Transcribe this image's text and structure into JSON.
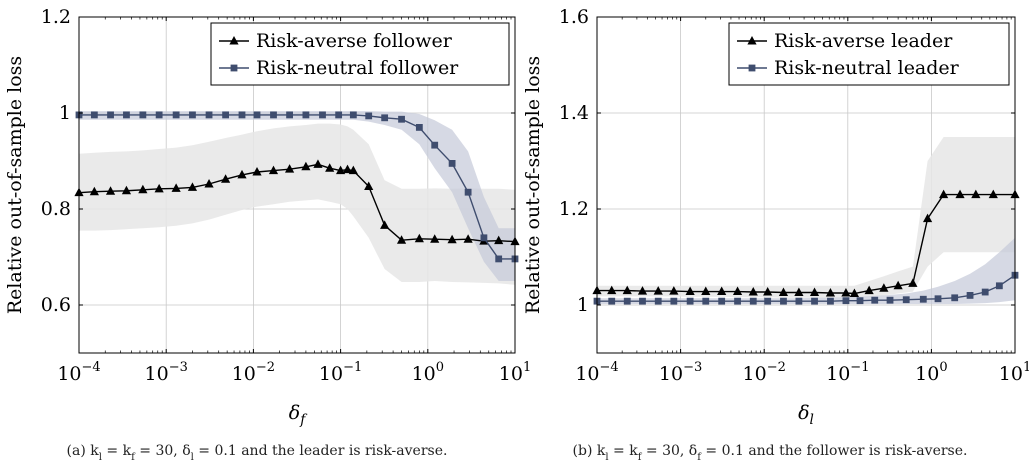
{
  "chart_data": [
    {
      "type": "line",
      "xscale": "log",
      "xlim": [
        0.0001,
        10
      ],
      "ylim": [
        0.5,
        1.2
      ],
      "xlabel": "δ_f",
      "ylabel": "Relative out-of-sample loss",
      "xticks": [
        "10^-4",
        "10^-3",
        "10^-2",
        "10^-1",
        "10^0",
        "10^1"
      ],
      "yticks": [
        "0.6",
        "0.8",
        "1",
        "1.2"
      ],
      "grid": true,
      "legend_position": "top-right",
      "caption": "(a) k_l = k_f = 30, δ_l = 0.1 and the leader is risk-averse.",
      "series": [
        {
          "name": "Risk-averse follower",
          "marker": "triangle",
          "color": "#000000",
          "band_color": "#e6e6e6",
          "x": [
            0.0001,
            0.00015,
            0.00023,
            0.00035,
            0.00054,
            0.00083,
            0.0013,
            0.002,
            0.0031,
            0.0048,
            0.0074,
            0.011,
            0.017,
            0.026,
            0.04,
            0.055,
            0.075,
            0.1,
            0.12,
            0.14,
            0.21,
            0.32,
            0.5,
            0.8,
            1.2,
            1.9,
            2.9,
            4.4,
            6.5,
            10
          ],
          "values": [
            0.834,
            0.836,
            0.837,
            0.838,
            0.84,
            0.842,
            0.843,
            0.845,
            0.852,
            0.862,
            0.871,
            0.877,
            0.88,
            0.883,
            0.888,
            0.893,
            0.885,
            0.88,
            0.882,
            0.88,
            0.847,
            0.766,
            0.735,
            0.738,
            0.737,
            0.736,
            0.737,
            0.733,
            0.734,
            0.732
          ],
          "band_low": [
            0.755,
            0.755,
            0.756,
            0.758,
            0.76,
            0.762,
            0.765,
            0.77,
            0.778,
            0.788,
            0.798,
            0.805,
            0.81,
            0.815,
            0.818,
            0.82,
            0.815,
            0.81,
            0.8,
            0.785,
            0.74,
            0.675,
            0.648,
            0.648,
            0.65,
            0.648,
            0.647,
            0.646,
            0.645,
            0.642
          ],
          "band_high": [
            0.915,
            0.917,
            0.919,
            0.92,
            0.922,
            0.925,
            0.928,
            0.933,
            0.94,
            0.948,
            0.955,
            0.962,
            0.968,
            0.972,
            0.975,
            0.978,
            0.978,
            0.976,
            0.972,
            0.965,
            0.935,
            0.86,
            0.842,
            0.842,
            0.843,
            0.842,
            0.843,
            0.842,
            0.842,
            0.84
          ]
        },
        {
          "name": "Risk-neutral follower",
          "marker": "square",
          "color": "#3f4d6e",
          "band_color": "#c5c9d8",
          "x": [
            0.0001,
            0.00015,
            0.00023,
            0.00035,
            0.00054,
            0.00083,
            0.0013,
            0.002,
            0.0031,
            0.0048,
            0.0074,
            0.011,
            0.017,
            0.026,
            0.04,
            0.062,
            0.095,
            0.14,
            0.21,
            0.32,
            0.5,
            0.8,
            1.2,
            1.9,
            2.9,
            4.4,
            6.5,
            10
          ],
          "values": [
            0.996,
            0.996,
            0.996,
            0.996,
            0.996,
            0.996,
            0.996,
            0.996,
            0.996,
            0.996,
            0.996,
            0.996,
            0.996,
            0.996,
            0.996,
            0.996,
            0.996,
            0.996,
            0.994,
            0.99,
            0.987,
            0.97,
            0.933,
            0.895,
            0.835,
            0.74,
            0.696,
            0.696
          ],
          "band_low": [
            0.986,
            0.986,
            0.986,
            0.986,
            0.986,
            0.986,
            0.986,
            0.986,
            0.986,
            0.986,
            0.986,
            0.986,
            0.986,
            0.986,
            0.986,
            0.986,
            0.986,
            0.986,
            0.982,
            0.975,
            0.965,
            0.935,
            0.885,
            0.835,
            0.76,
            0.69,
            0.65,
            0.65
          ],
          "band_high": [
            1.004,
            1.004,
            1.004,
            1.004,
            1.004,
            1.004,
            1.004,
            1.004,
            1.004,
            1.004,
            1.004,
            1.004,
            1.004,
            1.004,
            1.004,
            1.004,
            1.004,
            1.004,
            1.004,
            1.003,
            1.003,
            0.998,
            0.985,
            0.965,
            0.92,
            0.825,
            0.76,
            0.76
          ]
        }
      ]
    },
    {
      "type": "line",
      "xscale": "log",
      "xlim": [
        0.0001,
        10
      ],
      "ylim": [
        0.9,
        1.6
      ],
      "xlabel": "δ_l",
      "ylabel": "Relative out-of-sample loss",
      "xticks": [
        "10^-4",
        "10^-3",
        "10^-2",
        "10^-1",
        "10^0",
        "10^1"
      ],
      "yticks": [
        "1",
        "1.2",
        "1.4",
        "1.6"
      ],
      "grid": true,
      "legend_position": "top-right",
      "caption": "(b) k_l = k_f = 30, δ_f = 0.1 and the follower is risk-averse.",
      "series": [
        {
          "name": "Risk-averse leader",
          "marker": "triangle",
          "color": "#000000",
          "band_color": "#e6e6e6",
          "x": [
            0.0001,
            0.00015,
            0.00023,
            0.00035,
            0.00054,
            0.00083,
            0.0013,
            0.002,
            0.0031,
            0.0048,
            0.0074,
            0.011,
            0.017,
            0.026,
            0.04,
            0.062,
            0.095,
            0.12,
            0.18,
            0.27,
            0.4,
            0.6,
            0.9,
            1.4,
            2.2,
            3.4,
            5.5,
            10
          ],
          "values": [
            1.03,
            1.03,
            1.03,
            1.029,
            1.029,
            1.029,
            1.028,
            1.028,
            1.028,
            1.028,
            1.027,
            1.027,
            1.026,
            1.026,
            1.026,
            1.025,
            1.025,
            1.024,
            1.03,
            1.035,
            1.04,
            1.045,
            1.18,
            1.23,
            1.23,
            1.23,
            1.23,
            1.23
          ],
          "band_low": [
            1.018,
            1.018,
            1.018,
            1.018,
            1.018,
            1.018,
            1.017,
            1.017,
            1.017,
            1.016,
            1.016,
            1.016,
            1.015,
            1.015,
            1.015,
            1.014,
            1.014,
            1.014,
            1.016,
            1.02,
            1.024,
            1.028,
            1.08,
            1.11,
            1.11,
            1.11,
            1.11,
            1.11
          ],
          "band_high": [
            1.04,
            1.04,
            1.04,
            1.04,
            1.04,
            1.04,
            1.04,
            1.04,
            1.04,
            1.04,
            1.04,
            1.04,
            1.04,
            1.04,
            1.04,
            1.04,
            1.04,
            1.04,
            1.05,
            1.06,
            1.07,
            1.08,
            1.3,
            1.35,
            1.35,
            1.35,
            1.35,
            1.35
          ]
        },
        {
          "name": "Risk-neutral leader",
          "marker": "square",
          "color": "#3f4d6e",
          "band_color": "#c5c9d8",
          "x": [
            0.0001,
            0.00015,
            0.00023,
            0.00035,
            0.00054,
            0.00083,
            0.0013,
            0.002,
            0.0031,
            0.0048,
            0.0074,
            0.011,
            0.017,
            0.026,
            0.04,
            0.062,
            0.095,
            0.14,
            0.21,
            0.32,
            0.5,
            0.8,
            1.2,
            1.9,
            2.9,
            4.4,
            6.5,
            10
          ],
          "values": [
            1.008,
            1.008,
            1.008,
            1.008,
            1.008,
            1.008,
            1.008,
            1.008,
            1.008,
            1.008,
            1.008,
            1.008,
            1.008,
            1.008,
            1.008,
            1.008,
            1.009,
            1.009,
            1.01,
            1.01,
            1.011,
            1.012,
            1.013,
            1.015,
            1.02,
            1.027,
            1.04,
            1.062
          ],
          "band_low": [
            1.002,
            1.002,
            1.002,
            1.002,
            1.002,
            1.002,
            1.002,
            1.002,
            1.002,
            1.002,
            1.002,
            1.002,
            1.002,
            1.002,
            1.002,
            1.002,
            1.002,
            1.002,
            1.002,
            1.002,
            1.002,
            1.002,
            1.002,
            1.002,
            1.003,
            1.004,
            1.006,
            1.01
          ],
          "band_high": [
            1.014,
            1.014,
            1.014,
            1.014,
            1.014,
            1.014,
            1.014,
            1.014,
            1.014,
            1.014,
            1.014,
            1.014,
            1.014,
            1.014,
            1.015,
            1.015,
            1.016,
            1.017,
            1.019,
            1.021,
            1.024,
            1.03,
            1.038,
            1.05,
            1.065,
            1.085,
            1.11,
            1.14
          ]
        }
      ]
    }
  ]
}
